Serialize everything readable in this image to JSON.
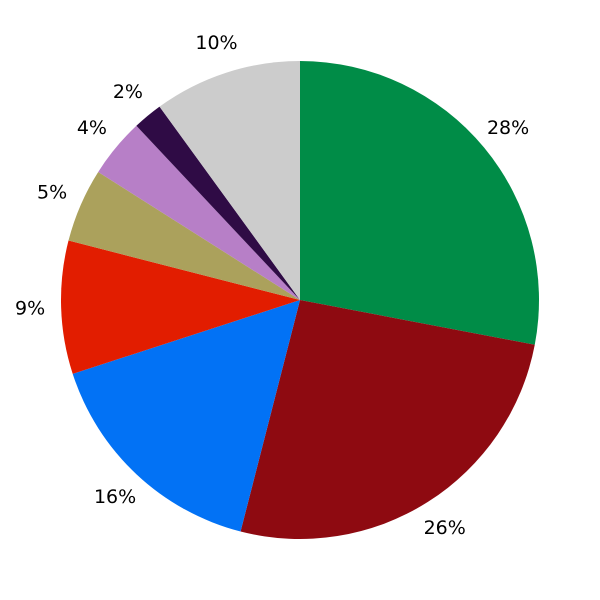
{
  "chart_data": {
    "type": "pie",
    "title": "",
    "legend": "none",
    "start_angle_deg": 90,
    "direction": "clockwise",
    "label_position": "outside",
    "background": "#FFFFFF",
    "label_color": "#000000",
    "slices": [
      {
        "label": "28%",
        "value": 28,
        "color": "#008C47"
      },
      {
        "label": "26%",
        "value": 26,
        "color": "#8E0A11"
      },
      {
        "label": "16%",
        "value": 16,
        "color": "#0272F5"
      },
      {
        "label": "9%",
        "value": 9,
        "color": "#E21D00"
      },
      {
        "label": "5%",
        "value": 5,
        "color": "#ABA15C"
      },
      {
        "label": "4%",
        "value": 4,
        "color": "#B77FC7"
      },
      {
        "label": "2%",
        "value": 2,
        "color": "#2F0B45"
      },
      {
        "label": "10%",
        "value": 10,
        "color": "#CCCCCC"
      }
    ]
  }
}
